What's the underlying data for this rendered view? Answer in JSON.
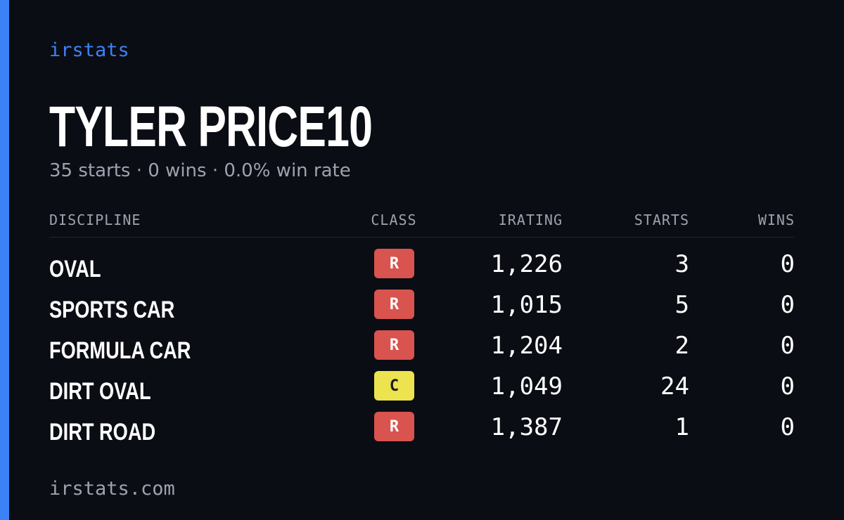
{
  "brand": "irstats",
  "header": {
    "title": "TYLER PRICE10",
    "subtitle": "35 starts · 0 wins · 0.0% win rate"
  },
  "table": {
    "columns": [
      "DISCIPLINE",
      "CLASS",
      "IRATING",
      "STARTS",
      "WINS"
    ],
    "rows": [
      [
        "OVAL",
        "R",
        "1,226",
        "3",
        "0"
      ],
      [
        "SPORTS CAR",
        "R",
        "1,015",
        "5",
        "0"
      ],
      [
        "FORMULA CAR",
        "R",
        "1,204",
        "2",
        "0"
      ],
      [
        "DIRT OVAL",
        "C",
        "1,049",
        "24",
        "0"
      ],
      [
        "DIRT ROAD",
        "R",
        "1,387",
        "1",
        "0"
      ]
    ],
    "badge_colors": [
      "#d9534f",
      "#d9534f",
      "#d9534f",
      "#ece34f",
      "#d9534f"
    ]
  },
  "footer": "irstats.com"
}
